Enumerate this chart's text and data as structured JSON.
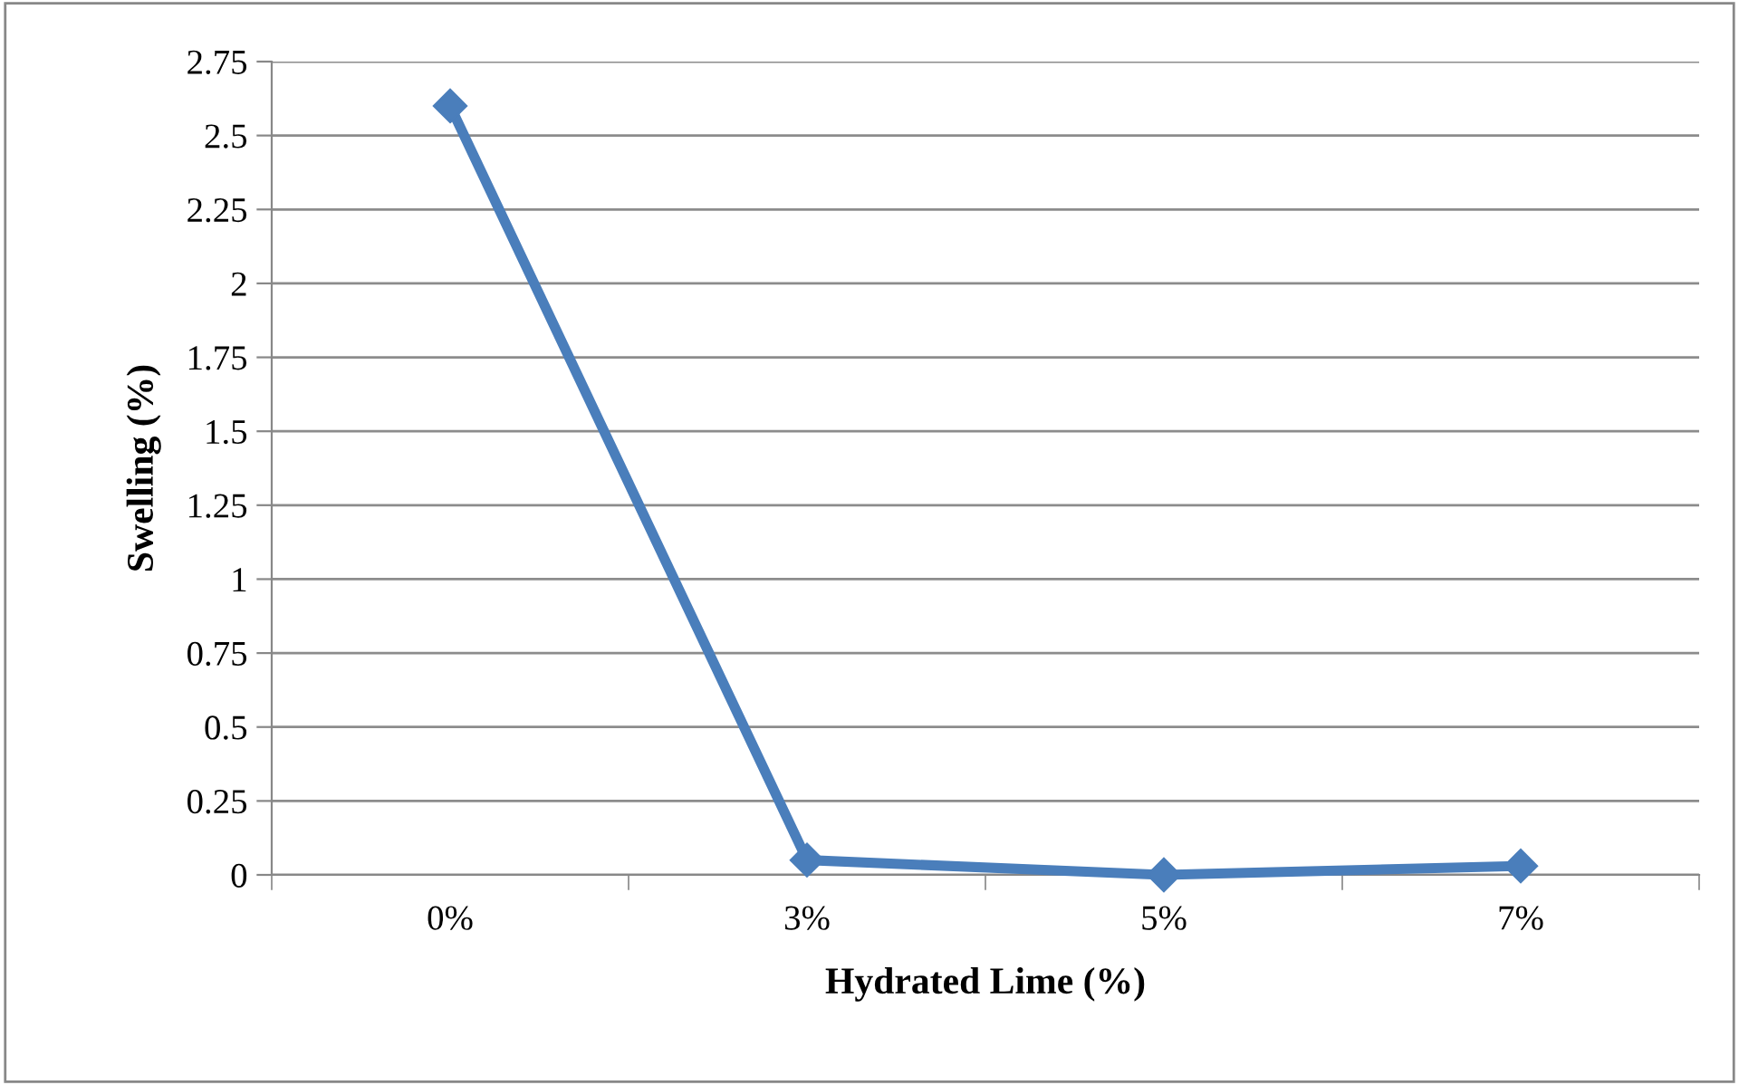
{
  "chart_data": {
    "type": "line",
    "xlabel": "Hydrated Lime (%)",
    "ylabel": "Swelling (%)",
    "categories": [
      "0%",
      "3%",
      "5%",
      "7%"
    ],
    "series": [
      {
        "color": "#4a7ebb",
        "values": [
          2.6,
          0.05,
          0.0,
          0.03
        ]
      }
    ],
    "ylim": [
      0,
      2.75
    ],
    "yticks": [
      0,
      0.25,
      0.5,
      0.75,
      1,
      1.25,
      1.5,
      1.75,
      2,
      2.25,
      2.5,
      2.75
    ],
    "grid": "y",
    "marker": "diamond",
    "line_style": "solid"
  }
}
